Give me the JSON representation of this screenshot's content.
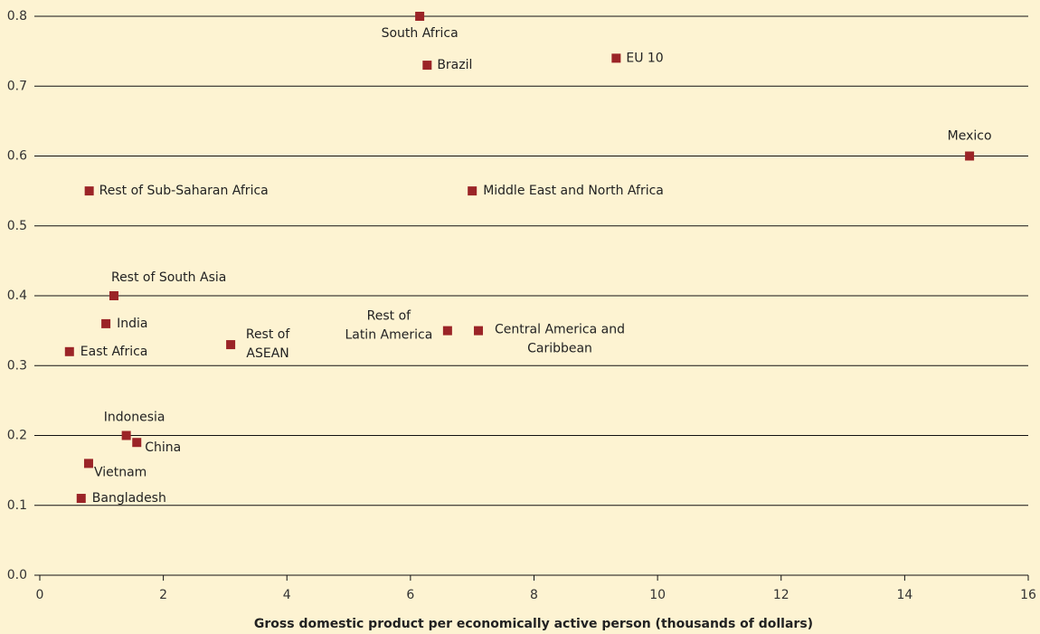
{
  "chart_data": {
    "type": "scatter",
    "x_label": "Gross domestic product per economically active person (thousands of dollars)",
    "labels": [
      "South Africa",
      "Brazil",
      "EU 10",
      "Mexico",
      "Rest of Sub-Saharan Africa",
      "Middle East and North Africa",
      "Rest of South Asia",
      "India",
      "East Africa",
      "Rest of\nASEAN",
      "Rest of\nLatin America",
      "Central America and\nCaribbean",
      "Indonesia",
      "China",
      "Vietnam",
      "Bangladesh"
    ],
    "x": [
      6.15,
      6.27,
      9.33,
      15.05,
      0.8,
      7.0,
      1.2,
      1.07,
      0.48,
      3.09,
      6.6,
      7.1,
      1.4,
      1.57,
      0.79,
      0.67
    ],
    "values": [
      0.8,
      0.73,
      0.74,
      0.6,
      0.55,
      0.55,
      0.4,
      0.36,
      0.32,
      0.33,
      0.35,
      0.35,
      0.2,
      0.19,
      0.16,
      0.11
    ],
    "color": "#9b2427",
    "xlim": [
      0,
      16
    ],
    "xticks": [
      0,
      2,
      4,
      6,
      8,
      10,
      12,
      14,
      16
    ],
    "ylim": [
      0,
      0.8
    ],
    "yticks": [
      {
        "value": 0,
        "label": "0.0"
      },
      0.1,
      0.2,
      0.3,
      0.4,
      0.5,
      0.6,
      0.7,
      0.8
    ],
    "grid": true
  }
}
